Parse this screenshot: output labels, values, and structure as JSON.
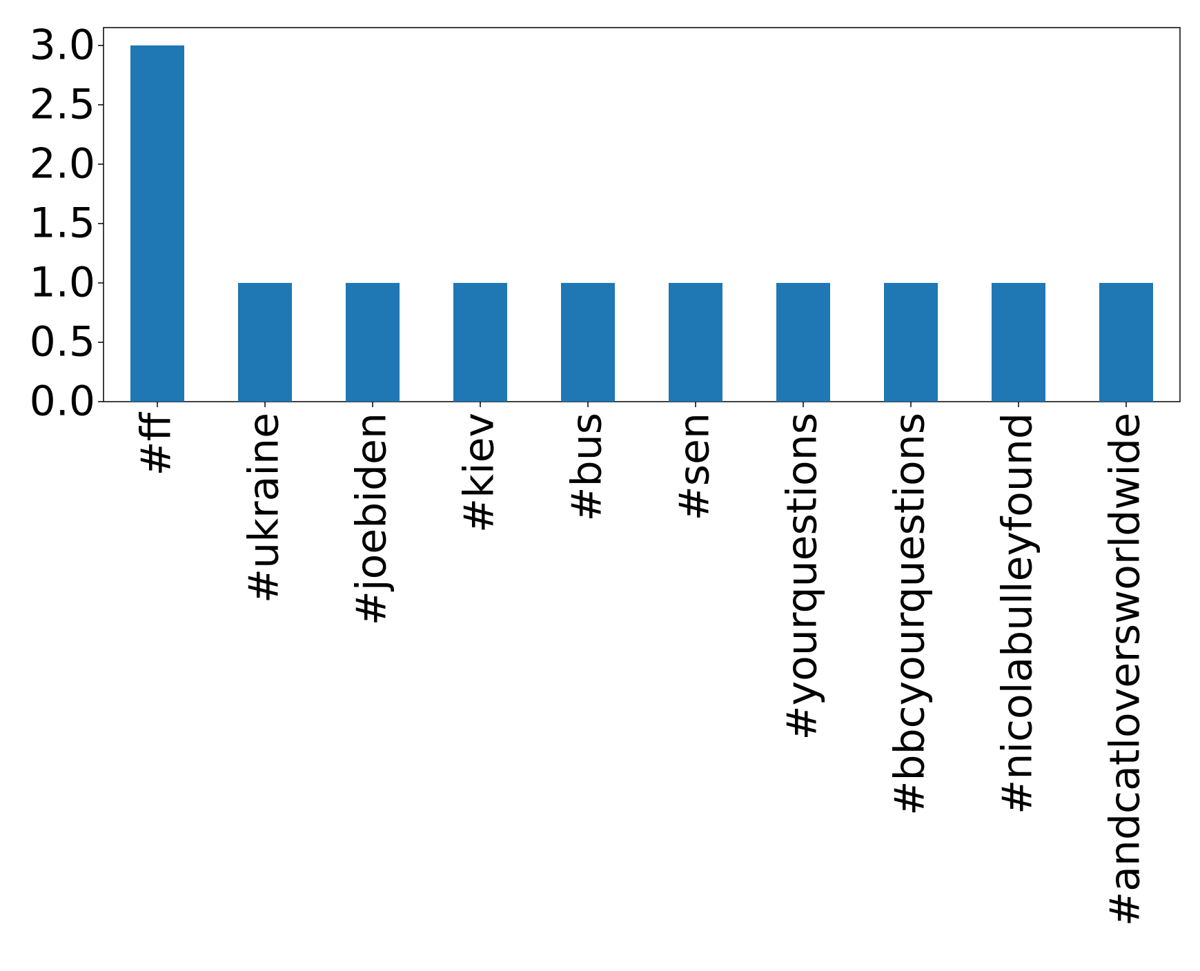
{
  "chart_data": {
    "type": "bar",
    "categories": [
      "#ff",
      "#ukraine",
      "#joebiden",
      "#kiev",
      "#bus",
      "#sen",
      "#yourquestions",
      "#bbcyourquestions",
      "#nicolabulleyfound",
      "#andcatloversworldwide"
    ],
    "values": [
      3,
      1,
      1,
      1,
      1,
      1,
      1,
      1,
      1,
      1
    ],
    "color": "#1f77b4",
    "ylim": [
      0,
      3.15
    ],
    "yticks": [
      {
        "value": 0,
        "label": "0.0"
      },
      {
        "value": 0.5,
        "label": "0.5"
      },
      {
        "value": 1,
        "label": "1.0"
      },
      {
        "value": 1.5,
        "label": "1.5"
      },
      {
        "value": 2,
        "label": "2.0"
      },
      {
        "value": 2.5,
        "label": "2.5"
      },
      {
        "value": 3,
        "label": "3.0"
      }
    ],
    "grid": false
  }
}
